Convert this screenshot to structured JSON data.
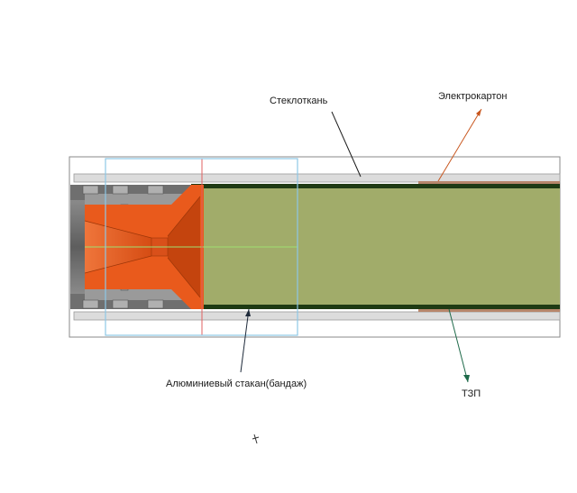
{
  "labels": {
    "fiberglass": "Стеклоткань",
    "electrocardboard": "Электрокартон",
    "aluminum_cup": "Алюминиевый стакан(бандаж)",
    "tzp": "ТЗП"
  },
  "colors": {
    "fiberglass_leader": "#1a1a1a",
    "electrocardboard_leader": "#c8561e",
    "aluminum_leader": "#1e2a3a",
    "tzp_leader": "#1f6a4a",
    "charge_fill": "#a1ac6a",
    "liner_dark": "#1f3b14",
    "nozzle_orange": "#e95a1c",
    "nozzle_dark_orange": "#c4440e",
    "housing_gray": "#6f6f6f",
    "outer_shell": "#dcdcdc",
    "electrocardboard_strip": "#b7866b",
    "selection_box": "#8ec7e6",
    "axis_red": "#e06060",
    "axis_green": "#9fe070"
  }
}
